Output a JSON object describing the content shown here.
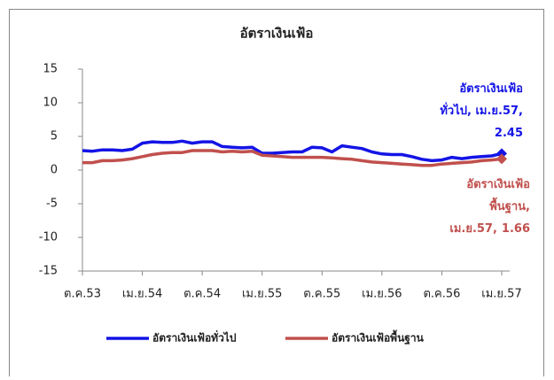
{
  "chart_data": {
    "type": "line",
    "title": "อัตราเงินเฟ้อ",
    "categories": [
      "ต.ค.53",
      null,
      null,
      null,
      null,
      null,
      "เม.ย.54",
      null,
      null,
      null,
      null,
      null,
      "ต.ค.54",
      null,
      null,
      null,
      null,
      null,
      "เม.ย.55",
      null,
      null,
      null,
      null,
      null,
      "ต.ค.55",
      null,
      null,
      null,
      null,
      null,
      "เม.ย.56",
      null,
      null,
      null,
      null,
      null,
      "ต.ค.56",
      null,
      null,
      null,
      null,
      null,
      "เม.ย.57"
    ],
    "series": [
      {
        "name": "อัตราเงินเฟ้อทั่วไป",
        "color": "#1414e6",
        "label_lines": [
          "อัตราเงินเฟ้อ",
          "ทั่วไป, เม.ย.57,"
        ],
        "values": [
          2.9,
          2.8,
          3.0,
          3.0,
          2.9,
          3.1,
          4.0,
          4.2,
          4.1,
          4.1,
          4.3,
          4.0,
          4.2,
          4.2,
          3.5,
          3.4,
          3.3,
          3.4,
          2.5,
          2.5,
          2.6,
          2.7,
          2.7,
          3.4,
          3.3,
          2.7,
          3.6,
          3.4,
          3.2,
          2.7,
          2.4,
          2.3,
          2.3,
          2.0,
          1.6,
          1.4,
          1.5,
          1.9,
          1.7,
          1.9,
          2.0,
          2.1,
          2.45
        ]
      },
      {
        "name": "อัตราเงินเฟ้อพื้นฐาน",
        "color": "#c0504d",
        "label_lines": [
          "อัตราเงินเฟ้อ",
          "พื้นฐาน,",
          "เม.ย.57,"
        ],
        "values": [
          1.1,
          1.1,
          1.4,
          1.4,
          1.5,
          1.7,
          2.0,
          2.3,
          2.5,
          2.6,
          2.6,
          2.9,
          2.9,
          2.9,
          2.7,
          2.8,
          2.7,
          2.8,
          2.2,
          2.1,
          2.0,
          1.9,
          1.9,
          1.9,
          1.9,
          1.8,
          1.7,
          1.6,
          1.4,
          1.2,
          1.1,
          1.0,
          0.9,
          0.8,
          0.7,
          0.7,
          0.9,
          1.0,
          1.1,
          1.2,
          1.4,
          1.5,
          1.66
        ]
      }
    ],
    "ylim": [
      -15,
      15
    ],
    "yticks": [
      -15,
      -10,
      -5,
      0,
      5,
      10,
      15
    ],
    "legend": "bottom"
  }
}
